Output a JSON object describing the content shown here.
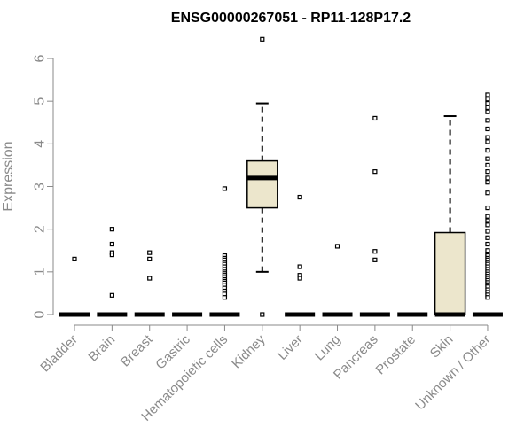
{
  "chart_data": {
    "type": "box",
    "title": "ENSG00000267051 - RP11-128P17.2",
    "xlabel": "",
    "ylabel": "Expression",
    "ylim": [
      0,
      6
    ],
    "yticks": [
      0,
      1,
      2,
      3,
      4,
      5,
      6
    ],
    "categories": [
      "Bladder",
      "Brain",
      "Breast",
      "Gastric",
      "Hematopoietic cells",
      "Kidney",
      "Liver",
      "Lung",
      "Pancreas",
      "Prostate",
      "Skin",
      "Unknown / Other"
    ],
    "box_color": "#ece6cc",
    "boxes": [
      {
        "category": "Bladder",
        "q1": 0,
        "median": 0,
        "q3": 0,
        "whisker_low": 0,
        "whisker_high": 0,
        "outliers": [
          1.3
        ]
      },
      {
        "category": "Brain",
        "q1": 0,
        "median": 0,
        "q3": 0,
        "whisker_low": 0,
        "whisker_high": 0,
        "outliers": [
          2.0,
          1.65,
          1.45,
          1.4,
          0.45
        ]
      },
      {
        "category": "Breast",
        "q1": 0,
        "median": 0,
        "q3": 0,
        "whisker_low": 0,
        "whisker_high": 0,
        "outliers": [
          1.45,
          1.3,
          0.85
        ]
      },
      {
        "category": "Gastric",
        "q1": 0,
        "median": 0,
        "q3": 0,
        "whisker_low": 0,
        "whisker_high": 0,
        "outliers": []
      },
      {
        "category": "Hematopoietic cells",
        "q1": 0,
        "median": 0,
        "q3": 0,
        "whisker_low": 0,
        "whisker_high": 0,
        "outliers": [
          2.95,
          1.38,
          1.32,
          1.28,
          1.22,
          1.18,
          1.12,
          1.06,
          1.0,
          0.96,
          0.92,
          0.87,
          0.82,
          0.78,
          0.74,
          0.68,
          0.62,
          0.55,
          0.48,
          0.4
        ]
      },
      {
        "category": "Kidney",
        "q1": 2.5,
        "median": 3.2,
        "q3": 3.6,
        "whisker_low": 1.0,
        "whisker_high": 4.95,
        "outliers": [
          6.45,
          0
        ]
      },
      {
        "category": "Liver",
        "q1": 0,
        "median": 0,
        "q3": 0,
        "whisker_low": 0,
        "whisker_high": 0,
        "outliers": [
          2.75,
          1.12,
          0.92,
          0.85
        ]
      },
      {
        "category": "Lung",
        "q1": 0,
        "median": 0,
        "q3": 0,
        "whisker_low": 0,
        "whisker_high": 0,
        "outliers": [
          1.6
        ]
      },
      {
        "category": "Pancreas",
        "q1": 0,
        "median": 0,
        "q3": 0,
        "whisker_low": 0,
        "whisker_high": 0,
        "outliers": [
          4.6,
          3.35,
          1.48,
          1.28
        ]
      },
      {
        "category": "Prostate",
        "q1": 0,
        "median": 0,
        "q3": 0,
        "whisker_low": 0,
        "whisker_high": 0,
        "outliers": []
      },
      {
        "category": "Skin",
        "q1": 0,
        "median": 0,
        "q3": 1.92,
        "whisker_low": 0,
        "whisker_high": 4.65,
        "outliers": []
      },
      {
        "category": "Unknown / Other",
        "q1": 0,
        "median": 0,
        "q3": 0,
        "whisker_low": 0,
        "whisker_high": 0,
        "outliers": [
          5.15,
          5.05,
          4.95,
          4.85,
          4.75,
          4.55,
          4.35,
          4.15,
          4.05,
          3.85,
          3.65,
          3.5,
          3.35,
          3.2,
          3.1,
          2.85,
          2.5,
          2.3,
          2.2,
          2.1,
          1.95,
          1.8,
          1.65,
          1.5,
          1.42,
          1.38,
          1.32,
          1.28,
          1.22,
          1.18,
          1.12,
          1.06,
          1.0,
          0.95,
          0.9,
          0.85,
          0.8,
          0.75,
          0.7,
          0.65,
          0.58,
          0.52,
          0.46,
          0.4
        ]
      }
    ]
  }
}
